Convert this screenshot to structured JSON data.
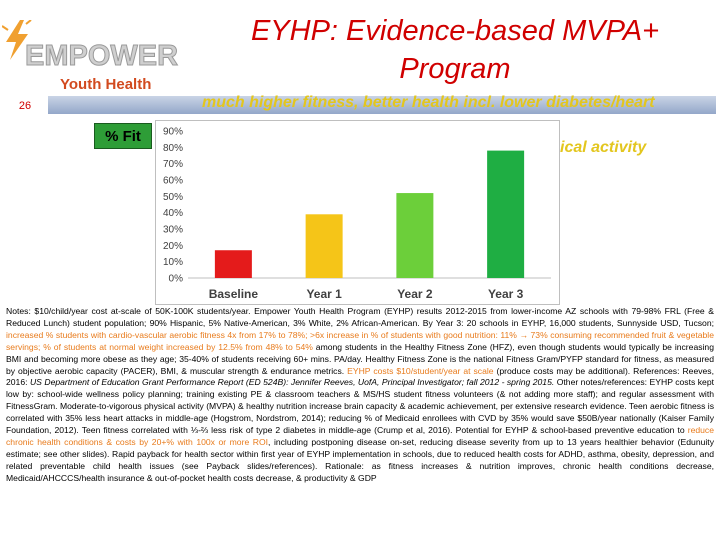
{
  "logo": {
    "brand": "EMPOWER",
    "sub": "Youth Health",
    "icon": "bolt-icon",
    "colors": {
      "brand": "#9a9a9a",
      "sub": "#d24a1f",
      "bolt": "#f0a030"
    }
  },
  "header": {
    "title_line1": "EYHP:  Evidence-based MVPA+",
    "title_line2": "Program",
    "slide_number": "26",
    "subtitle": "much higher fitness, better health incl. lower diabetes/heart",
    "side_text": "ical activity",
    "colors": {
      "title": "#d00000",
      "subtitle": "#e3c61e",
      "strip": "#93a7c9"
    }
  },
  "fit_label": "% Fit",
  "chart_data": {
    "type": "bar",
    "categories": [
      "Baseline",
      "Year 1",
      "Year 2",
      "Year 3"
    ],
    "values": [
      17,
      39,
      52,
      78
    ],
    "colors": [
      "#e41b1b",
      "#f5c518",
      "#6ccf3a",
      "#1fae43"
    ],
    "ylim": [
      0,
      90
    ],
    "yticks": [
      "0%",
      "10%",
      "20%",
      "30%",
      "40%",
      "50%",
      "60%",
      "70%",
      "80%",
      "90%"
    ],
    "grid": false,
    "legend": "none"
  },
  "notes": {
    "s1": "Notes: $10/child/year cost at-scale of 50K-100K students/year.  Empower Youth Health Program (EYHP) results 2012-2015 from lower-income AZ schools with 79-98% FRL (Free & Reduced Lunch) student population; 90% Hispanic, 5% Native-American, 3% White, 2% African-American.  By Year 3: 20 schools in EYHP, 16,000 students, Sunnyside USD, Tucson; ",
    "h1": "increased % students with cardio-vascular aerobic fitness 4x from 17% to 78%; >6x increase in % of students with good nutrition:     11% → 73% consuming recommended fruit & vegetable servings;  % of students at normal weight increased by 12.5% from 48% to 54%",
    "s2": " among students in the Healthy Fitness Zone (HFZ), even though students would typically be increasing BMI and becoming more obese as they age;  35-40% of students receiving 60+ mins. PA/day.  Healthy Fitness Zone is the national Fitness Gram/PYFP standard for fitness, as measured by objective aerobic capacity (PACER), BMI, & muscular strength & endurance metrics.  ",
    "h2": "EYHP costs $10/student/year at scale",
    "s3": "  (produce costs may be additional).  References:  Reeves, 2016: ",
    "i1": "US Department of Education Grant Performance Report (ED 524B): Jennifer Reeves, UofA, Principal Investigator; fall 2012 - spring 2015.",
    "s4": "  Other notes/references:  EYHP costs kept low by: school-wide wellness policy planning;  training existing PE & classroom teachers & MS/HS student fitness volunteers (& not adding more staff);  and regular assessment with FitnessGram.  Moderate-to-vigorous physical activity (MVPA) & healthy nutrition increase brain capacity & academic achievement, per extensive research evidence.  Teen aerobic fitness is correlated with 35% less heart attacks in middle-age (Hogstrom, Nordstrom, 2014);  reducing % of Medicaid enrollees with CVD by 35% would save $50B/year nationally (Kaiser Family Foundation, 2012).  Teen fitness correlated with ⅓-⅔ less risk of type 2 diabetes in middle-age (Crump et al, 2016).  Potential for EYHP & school-based preventive education to ",
    "h3": "reduce chronic health conditions & costs by 20+% with 100x or more ROI",
    "s5": ", including postponing disease on-set, reducing disease severity from up to 13 years healthier behavior (Edunuity estimate; see other slides).  Rapid payback for health sector within first year of EYHP implementation in schools, due to reduced health costs for ADHD, asthma, obesity, depression, and related preventable child health issues (see Payback slides/references).  Rationale:  as fitness increases & nutrition improves, chronic health conditions decrease, Medicaid/AHCCCS/health insurance & out-of-pocket health costs decrease, & productivity & GDP"
  }
}
